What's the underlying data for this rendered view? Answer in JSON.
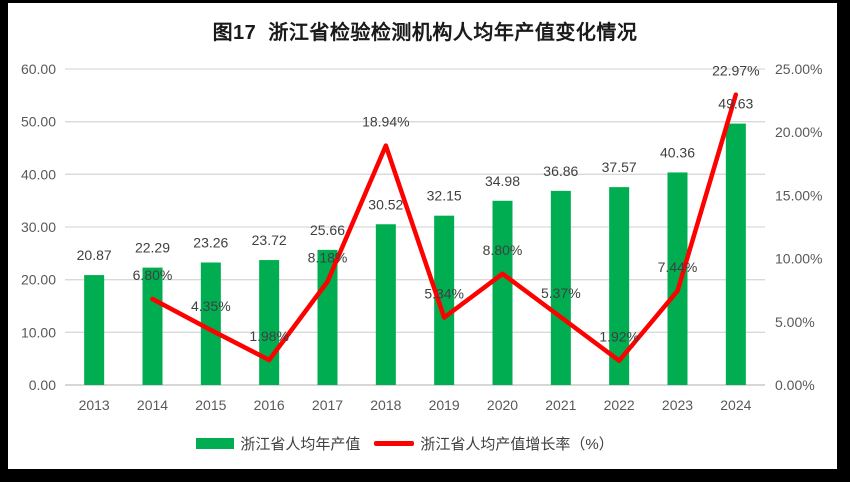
{
  "title": "图17  浙江省检验检测机构人均年产值变化情况",
  "colors": {
    "bar": "#00AD50",
    "line": "#FE0000",
    "grid": "#D9D9D9",
    "axis_line": "#BFBFBF",
    "axis_text": "#595959",
    "data_label_text": "#404040",
    "frame": "#000000",
    "background": "#FFFFFF"
  },
  "legend": [
    {
      "label": "浙江省人均年产值",
      "swatch": "bar-swatch",
      "color": "#00AD50"
    },
    {
      "label": "浙江省人均产值增长率（%）",
      "swatch": "line-swatch",
      "color": "#FE0000"
    }
  ],
  "chart_data": {
    "type": "bar+line-combo",
    "title": "图17  浙江省检验检测机构人均年产值变化情况",
    "categories": [
      "2013",
      "2014",
      "2015",
      "2016",
      "2017",
      "2018",
      "2019",
      "2020",
      "2021",
      "2022",
      "2023",
      "2024"
    ],
    "series": [
      {
        "name": "浙江省人均年产值",
        "type": "bar",
        "axis": "left",
        "color": "#00AD50",
        "values": [
          20.87,
          22.29,
          23.26,
          23.72,
          25.66,
          30.52,
          32.15,
          34.98,
          36.86,
          37.57,
          40.36,
          49.63
        ],
        "labels": [
          "20.87",
          "22.29",
          "23.26",
          "23.72",
          "25.66",
          "30.52",
          "32.15",
          "34.98",
          "36.86",
          "37.57",
          "40.36",
          "49.63"
        ]
      },
      {
        "name": "浙江省人均产值增长率（%）",
        "type": "line",
        "axis": "right",
        "color": "#FE0000",
        "values": [
          null,
          6.8,
          4.35,
          1.98,
          8.18,
          18.94,
          5.34,
          8.8,
          5.37,
          1.92,
          7.44,
          22.97
        ],
        "labels": [
          null,
          "6.80%",
          "4.35%",
          "1.98%",
          "8.18%",
          "18.94%",
          "5.34%",
          "8.80%",
          "5.37%",
          "1.92%",
          "7.44%",
          "22.97%"
        ]
      }
    ],
    "left_axis": {
      "min": 0,
      "max": 60,
      "step": 10,
      "tick_labels": [
        "0.00",
        "10.00",
        "20.00",
        "30.00",
        "40.00",
        "50.00",
        "60.00"
      ]
    },
    "right_axis": {
      "min": 0,
      "max": 25,
      "step": 5,
      "tick_labels": [
        "0.00%",
        "5.00%",
        "10.00%",
        "15.00%",
        "20.00%",
        "25.00%"
      ]
    },
    "grid": true,
    "legend_position": "bottom"
  }
}
